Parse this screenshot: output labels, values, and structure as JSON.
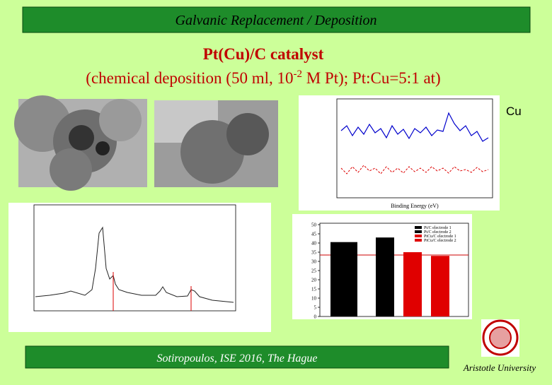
{
  "header": {
    "title": "Galvanic Replacement / Deposition"
  },
  "slide": {
    "title": "Pt(Cu)/C catalyst",
    "subtitle": {
      "before": "(chemical deposition (50 ml, 10",
      "superscript": "-2",
      "after": " M Pt); Pt:Cu=5:1 at)"
    },
    "xps_label": "Cu",
    "xps_axis": "Binding Energy (eV)"
  },
  "bar_chart": {
    "type": "bar",
    "series": [
      {
        "name": "Pt/C electrode 1",
        "color": "#000000",
        "values": [
          40.5
        ]
      },
      {
        "name": "Pt/C electrode 2",
        "color": "#000000",
        "values": [
          43
        ]
      },
      {
        "name": "PtCu/C electrode 1",
        "color": "#e00000",
        "values": [
          35
        ]
      },
      {
        "name": "PtCu/C electrode 2",
        "color": "#e00000",
        "values": [
          33
        ]
      }
    ],
    "ylim": [
      0,
      50
    ],
    "yticks": [
      0,
      5,
      10,
      15,
      20,
      25,
      30,
      35,
      40,
      45,
      50
    ]
  },
  "footer": {
    "left": "Sotiropoulos, ISE 2016, The Hague",
    "right": "Aristotle University"
  }
}
